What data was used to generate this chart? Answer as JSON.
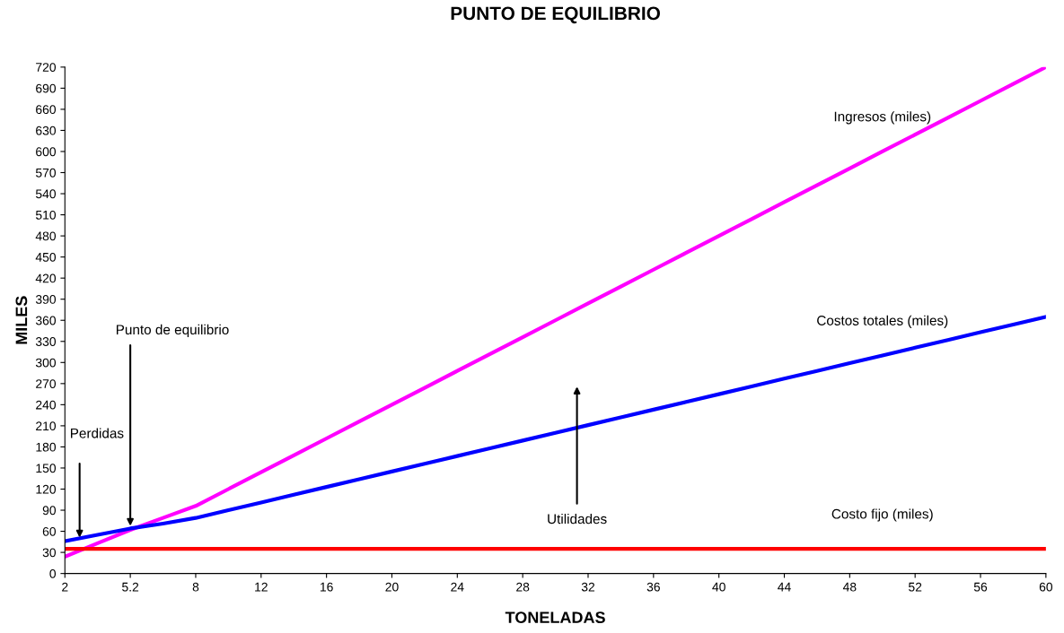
{
  "chart_data": {
    "type": "line",
    "title": "PUNTO DE EQUILIBRIO",
    "xlabel": "TONELADAS",
    "ylabel": "MILES",
    "categories": [
      "2",
      null,
      "5.2",
      null,
      "8",
      null,
      "12",
      null,
      "16",
      null,
      "20",
      null,
      "24",
      null,
      "28",
      null,
      "32",
      null,
      "36",
      null,
      "40",
      null,
      "44",
      null,
      "48",
      null,
      "52",
      null,
      "56",
      null,
      "60"
    ],
    "ylim": [
      0,
      720
    ],
    "yticks": [
      0,
      30,
      60,
      90,
      120,
      150,
      180,
      210,
      240,
      270,
      300,
      330,
      360,
      390,
      420,
      450,
      480,
      510,
      540,
      570,
      600,
      630,
      660,
      690,
      720
    ],
    "grid": false,
    "legend": false,
    "marker": "none",
    "line_style": "solid",
    "series": [
      {
        "name": "Ingresos (miles)",
        "color": "#ff00ff",
        "values": [
          24,
          43,
          62,
          79,
          96,
          120,
          144,
          168,
          192,
          216,
          240,
          264,
          288,
          312,
          336,
          360,
          384,
          408,
          432,
          456,
          480,
          504,
          528,
          552,
          576,
          600,
          624,
          648,
          672,
          696,
          720
        ]
      },
      {
        "name": "Costos totales (miles)",
        "color": "#0000ff",
        "values": [
          46,
          55,
          64,
          71,
          79,
          90,
          101,
          112,
          123,
          134,
          145,
          156,
          167,
          178,
          189,
          200,
          211,
          222,
          233,
          244,
          255,
          266,
          277,
          288,
          299,
          310,
          321,
          332,
          343,
          354,
          365
        ]
      },
      {
        "name": "Costo fijo (miles)",
        "color": "#ff0000",
        "values": [
          35,
          35,
          35,
          35,
          35,
          35,
          35,
          35,
          35,
          35,
          35,
          35,
          35,
          35,
          35,
          35,
          35,
          35,
          35,
          35,
          35,
          35,
          35,
          35,
          35,
          35,
          35,
          35,
          35,
          35,
          35
        ]
      }
    ],
    "annotations": [
      {
        "text": "Punto de equilibrio",
        "x": "5.2",
        "y": 64
      },
      "Perdidas",
      "Utilidades"
    ]
  }
}
